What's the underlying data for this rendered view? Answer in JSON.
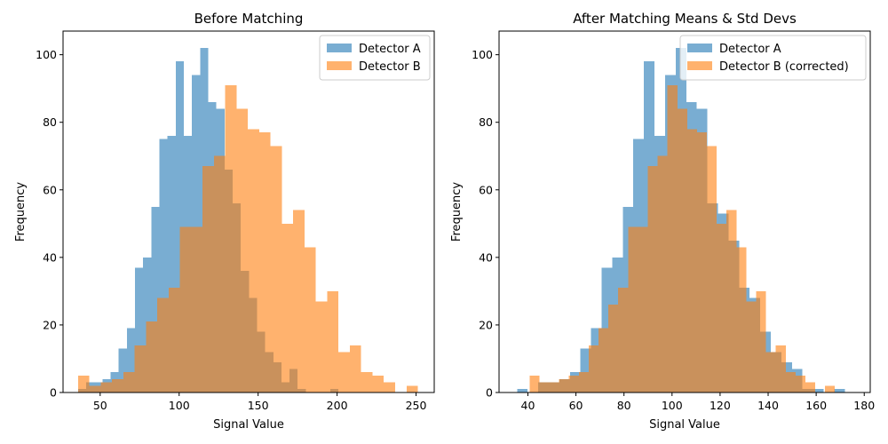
{
  "chart_data": [
    {
      "type": "histogram",
      "title": "Before Matching",
      "xlabel": "Signal Value",
      "ylabel": "Frequency",
      "xlim": [
        26.5,
        261.5
      ],
      "ylim": [
        0,
        107
      ],
      "xticks": [
        50,
        100,
        150,
        200,
        250
      ],
      "yticks": [
        0,
        20,
        40,
        60,
        80,
        100
      ],
      "legend_position": "top-right",
      "series": [
        {
          "name": "Detector A",
          "color": "#1f77b4",
          "alpha": 0.6,
          "bin_start": 36,
          "bin_width": 5.15,
          "counts": [
            1,
            3,
            3,
            4,
            6,
            13,
            19,
            37,
            40,
            55,
            75,
            76,
            98,
            76,
            94,
            102,
            86,
            84,
            66,
            56,
            36,
            28,
            18,
            12,
            9,
            3,
            7,
            1,
            0,
            0,
            0,
            1
          ]
        },
        {
          "name": "Detector B",
          "color": "#ff7f0e",
          "alpha": 0.6,
          "bin_start": 36,
          "bin_width": 7.17,
          "counts": [
            5,
            2,
            3,
            4,
            6,
            14,
            21,
            28,
            31,
            49,
            49,
            67,
            70,
            91,
            84,
            78,
            77,
            73,
            50,
            54,
            43,
            27,
            30,
            12,
            14,
            6,
            5,
            3,
            0,
            2
          ]
        }
      ]
    },
    {
      "type": "histogram",
      "title": "After Matching Means & Std Devs",
      "xlabel": "Signal Value",
      "ylabel": "Frequency",
      "xlim": [
        28.0,
        182.5
      ],
      "ylim": [
        0,
        107
      ],
      "xticks": [
        40,
        60,
        80,
        100,
        120,
        140,
        160,
        180
      ],
      "yticks": [
        0,
        20,
        40,
        60,
        80,
        100
      ],
      "legend_position": "top-right",
      "series": [
        {
          "name": "Detector A",
          "color": "#1f77b4",
          "alpha": 0.6,
          "bin_start": 35.5,
          "bin_width": 4.4,
          "counts": [
            1,
            0,
            3,
            3,
            4,
            6,
            13,
            19,
            37,
            40,
            55,
            75,
            98,
            76,
            94,
            102,
            86,
            84,
            56,
            53,
            45,
            31,
            28,
            18,
            12,
            9,
            7,
            1,
            1,
            0,
            1
          ]
        },
        {
          "name": "Detector B (corrected)",
          "color": "#ff7f0e",
          "alpha": 0.6,
          "bin_start": 40.7,
          "bin_width": 4.1,
          "counts": [
            5,
            3,
            3,
            4,
            5,
            6,
            14,
            19,
            26,
            31,
            49,
            49,
            67,
            70,
            91,
            84,
            78,
            77,
            73,
            50,
            54,
            43,
            27,
            30,
            12,
            14,
            6,
            5,
            3,
            0,
            2
          ]
        }
      ]
    }
  ]
}
